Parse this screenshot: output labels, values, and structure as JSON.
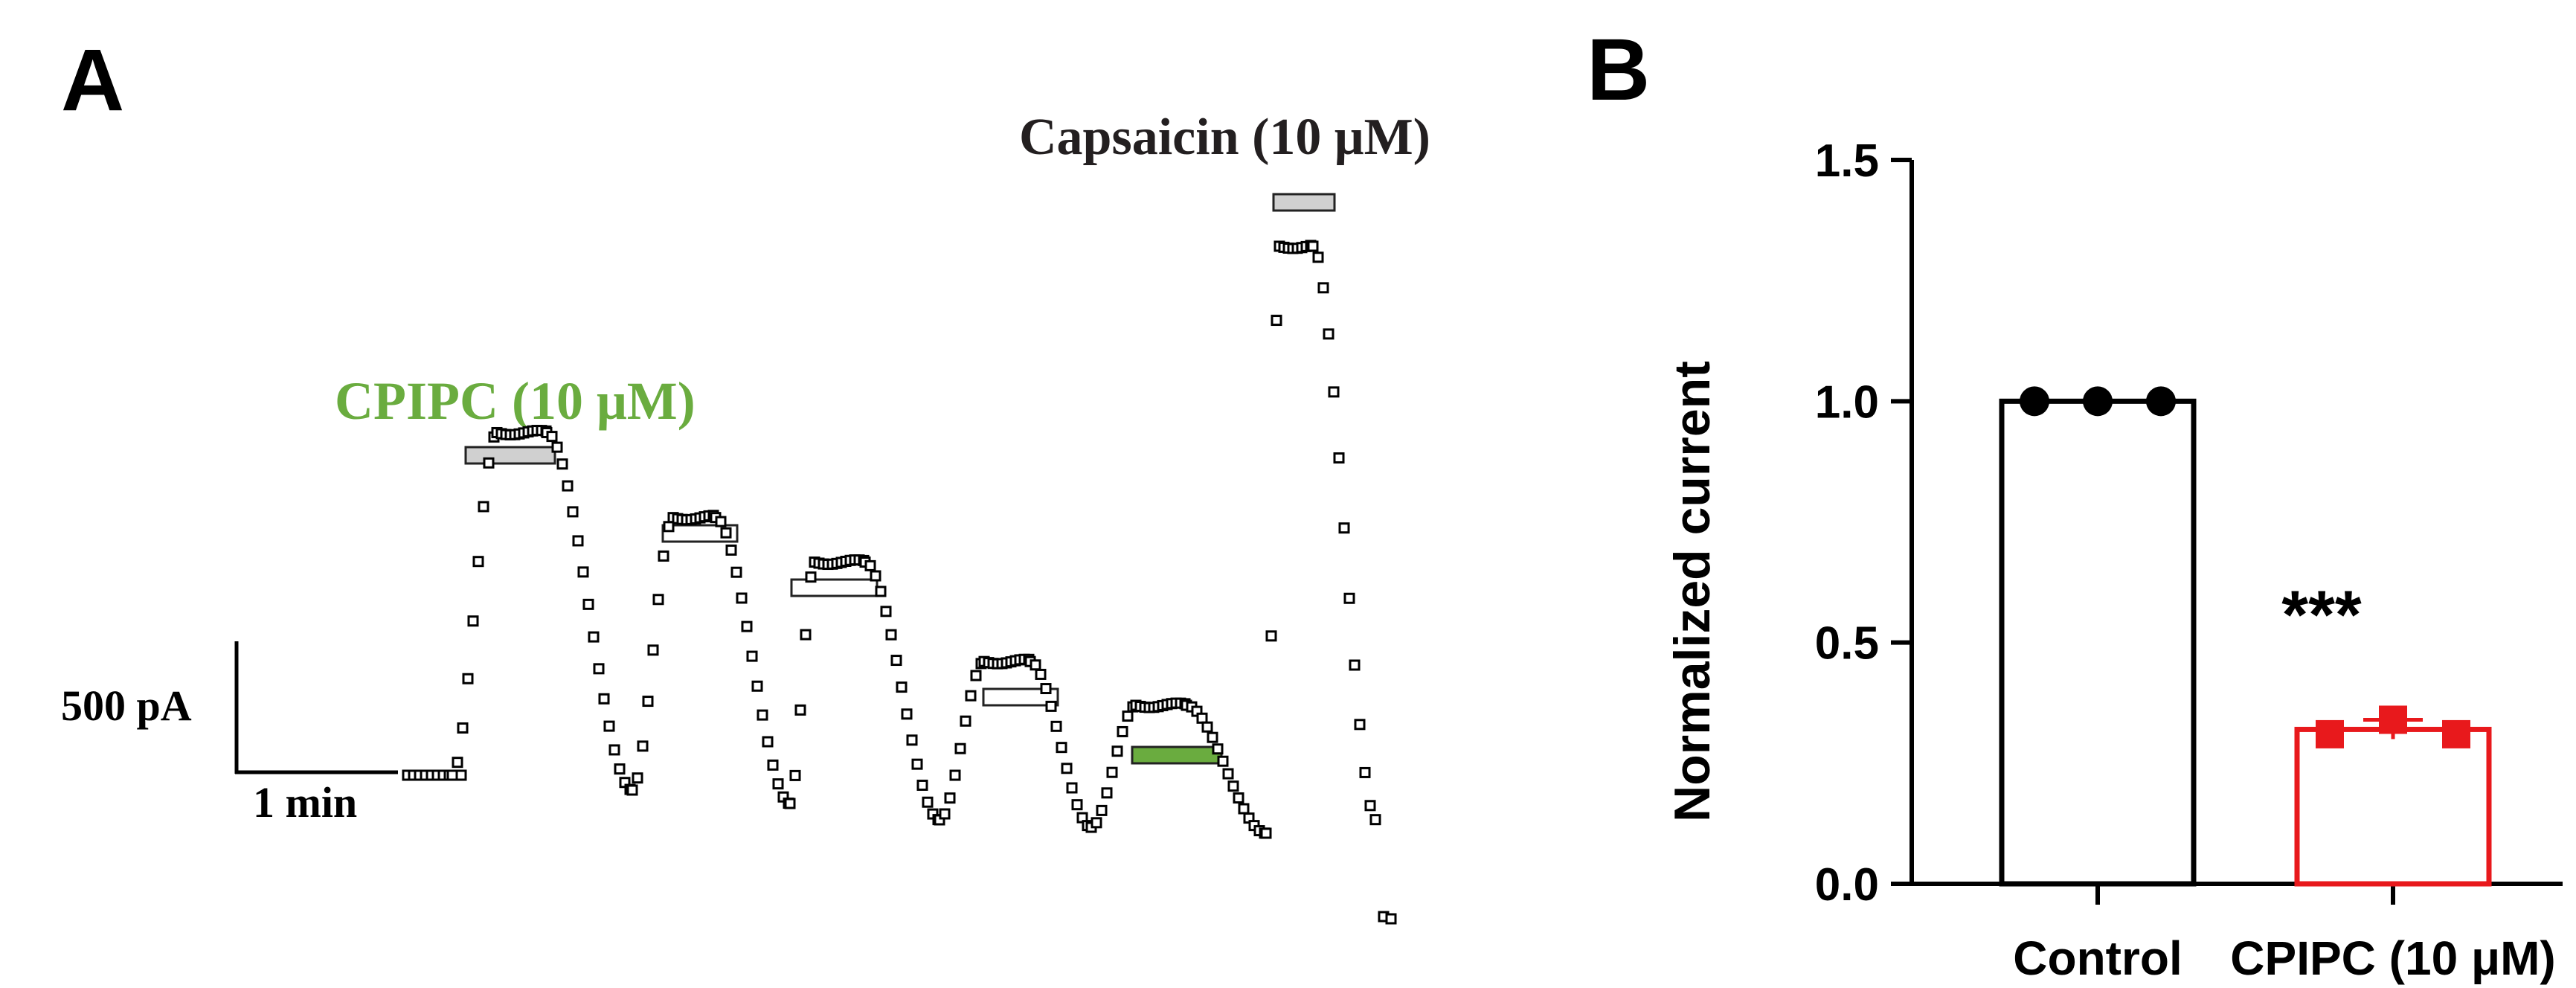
{
  "panels": {
    "a_label": "A",
    "b_label": "B"
  },
  "colors": {
    "cpipc_green": "#6aac3f",
    "cpipc_red": "#e8191c",
    "black": "#000000",
    "bar_gray": "#d0d0d0"
  },
  "chart_data": [
    {
      "type": "scatter",
      "panel": "A",
      "annotations": {
        "capsaicin": "Capsaicin (10 μM)",
        "cpipc": "CPIPC (10 μM)"
      },
      "scale_bar": {
        "current_label": "500 pA",
        "time_label": "1 min",
        "current_pA": 500,
        "time_min": 1
      },
      "peak_currents_pA": [
        0,
        1320,
        1050,
        930,
        610,
        470,
        2210
      ],
      "application_bars": [
        {
          "agent": "capsaicin",
          "fill": "light"
        },
        {
          "agent": "capsaicin",
          "fill": "white"
        },
        {
          "agent": "capsaicin",
          "fill": "white"
        },
        {
          "agent": "capsaicin",
          "fill": "white"
        },
        {
          "agent": "cpipc",
          "fill": "green"
        },
        {
          "agent": "capsaicin",
          "fill": "light"
        }
      ]
    },
    {
      "type": "bar",
      "panel": "B",
      "ylabel": "Normalized current",
      "categories": [
        "Control",
        "CPIPC (10 μM)"
      ],
      "values": [
        1.0,
        0.32
      ],
      "ylim": [
        0,
        1.5
      ],
      "yticks": [
        "0.0",
        "0.5",
        "1.0",
        "1.5"
      ],
      "points": [
        [
          1.0,
          1.0,
          1.0
        ],
        [
          0.31,
          0.34,
          0.31
        ]
      ],
      "error": [
        0.0,
        0.02
      ],
      "significance": "***",
      "bar_colors": [
        "#000000",
        "#e8191c"
      ]
    }
  ]
}
